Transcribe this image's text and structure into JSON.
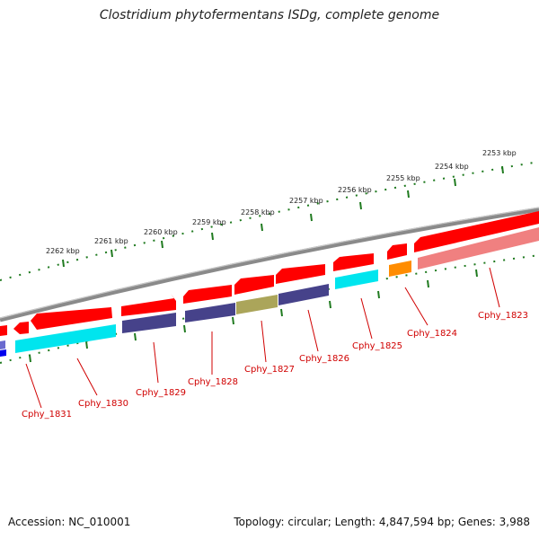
{
  "title": "Clostridium phytofermentans ISDg, complete genome",
  "footer": {
    "accession": "Accession: NC_010001",
    "topology": "Topology: circular; Length: 4,847,594 bp; Genes: 3,988"
  },
  "colors": {
    "backbone": "#8a8a8a",
    "tick": "#1f7a1f",
    "gene_red": "#ff0000",
    "gene_cyan": "#00e5ee",
    "gene_navy": "#46428a",
    "gene_olive": "#aba55a",
    "gene_orange": "#ff8c00",
    "gene_pink": "#f08080",
    "label": "#d00000"
  },
  "scale_ticks": [
    "2262 kbp",
    "2261 kbp",
    "2260 kbp",
    "2259 kbp",
    "2258 kbp",
    "2257 kbp",
    "2256 kbp",
    "2255 kbp",
    "2254 kbp",
    "2253 kbp"
  ],
  "gene_labels": [
    "Cphy_1831",
    "Cphy_1830",
    "Cphy_1829",
    "Cphy_1828",
    "Cphy_1827",
    "Cphy_1826",
    "Cphy_1825",
    "Cphy_1824",
    "Cphy_1823"
  ]
}
